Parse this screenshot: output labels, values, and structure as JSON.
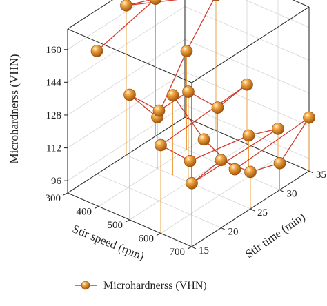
{
  "chart_data": {
    "type": "scatter",
    "projection": "3d",
    "axes": {
      "x": {
        "label": "Stir speed (rpm)",
        "range": [
          300,
          700
        ],
        "ticks": [
          300,
          400,
          500,
          600,
          700
        ]
      },
      "y": {
        "label": "Stir time (min)",
        "range": [
          15,
          35
        ],
        "ticks": [
          15,
          20,
          25,
          30,
          35
        ]
      },
      "z": {
        "label": "Microhardnerss (VHN)",
        "range": [
          90,
          170
        ],
        "ticks": [
          96,
          112,
          128,
          144,
          160
        ]
      }
    },
    "grid": true,
    "drop_lines": true,
    "legend": {
      "placement": "bottom",
      "entries": [
        "Microhardnerss (VHN)"
      ]
    },
    "series": [
      {
        "name": "Microhardnerss (VHN)",
        "color": "#e8892a",
        "line_color": "#d23a2a",
        "points": [
          {
            "x": 300,
            "y": 20,
            "z": 150
          },
          {
            "x": 300,
            "y": 30,
            "z": 157
          },
          {
            "x": 300,
            "y": 25,
            "z": 163
          },
          {
            "x": 400,
            "y": 35,
            "z": 156
          },
          {
            "x": 400,
            "y": 30,
            "z": 138
          },
          {
            "x": 400,
            "y": 25,
            "z": 115
          },
          {
            "x": 500,
            "y": 15,
            "z": 151
          },
          {
            "x": 500,
            "y": 20,
            "z": 134
          },
          {
            "x": 500,
            "y": 25,
            "z": 134
          },
          {
            "x": 500,
            "y": 30,
            "z": 117
          },
          {
            "x": 500,
            "y": 35,
            "z": 119
          },
          {
            "x": 600,
            "y": 15,
            "z": 133
          },
          {
            "x": 600,
            "y": 20,
            "z": 116
          },
          {
            "x": 600,
            "y": 30,
            "z": 110
          },
          {
            "x": 600,
            "y": 35,
            "z": 104
          },
          {
            "x": 700,
            "y": 15,
            "z": 121
          },
          {
            "x": 700,
            "y": 20,
            "z": 123
          },
          {
            "x": 700,
            "y": 25,
            "z": 108
          },
          {
            "x": 700,
            "y": 30,
            "z": 103
          },
          {
            "x": 700,
            "y": 35,
            "z": 116
          },
          {
            "x": 650,
            "y": 25,
            "z": 106
          },
          {
            "x": 550,
            "y": 25,
            "z": 114
          },
          {
            "x": 450,
            "y": 25,
            "z": 129
          }
        ],
        "connections": [
          [
            0,
            1
          ],
          [
            1,
            2
          ],
          [
            2,
            3
          ],
          [
            3,
            4
          ],
          [
            4,
            5
          ],
          [
            5,
            6
          ],
          [
            6,
            7
          ],
          [
            7,
            8
          ],
          [
            8,
            9
          ],
          [
            9,
            10
          ],
          [
            10,
            11
          ],
          [
            11,
            12
          ],
          [
            12,
            13
          ],
          [
            13,
            14
          ],
          [
            14,
            15
          ],
          [
            15,
            16
          ],
          [
            16,
            17
          ],
          [
            17,
            18
          ],
          [
            18,
            19
          ],
          [
            19,
            20
          ],
          [
            20,
            21
          ],
          [
            21,
            22
          ]
        ]
      }
    ]
  }
}
